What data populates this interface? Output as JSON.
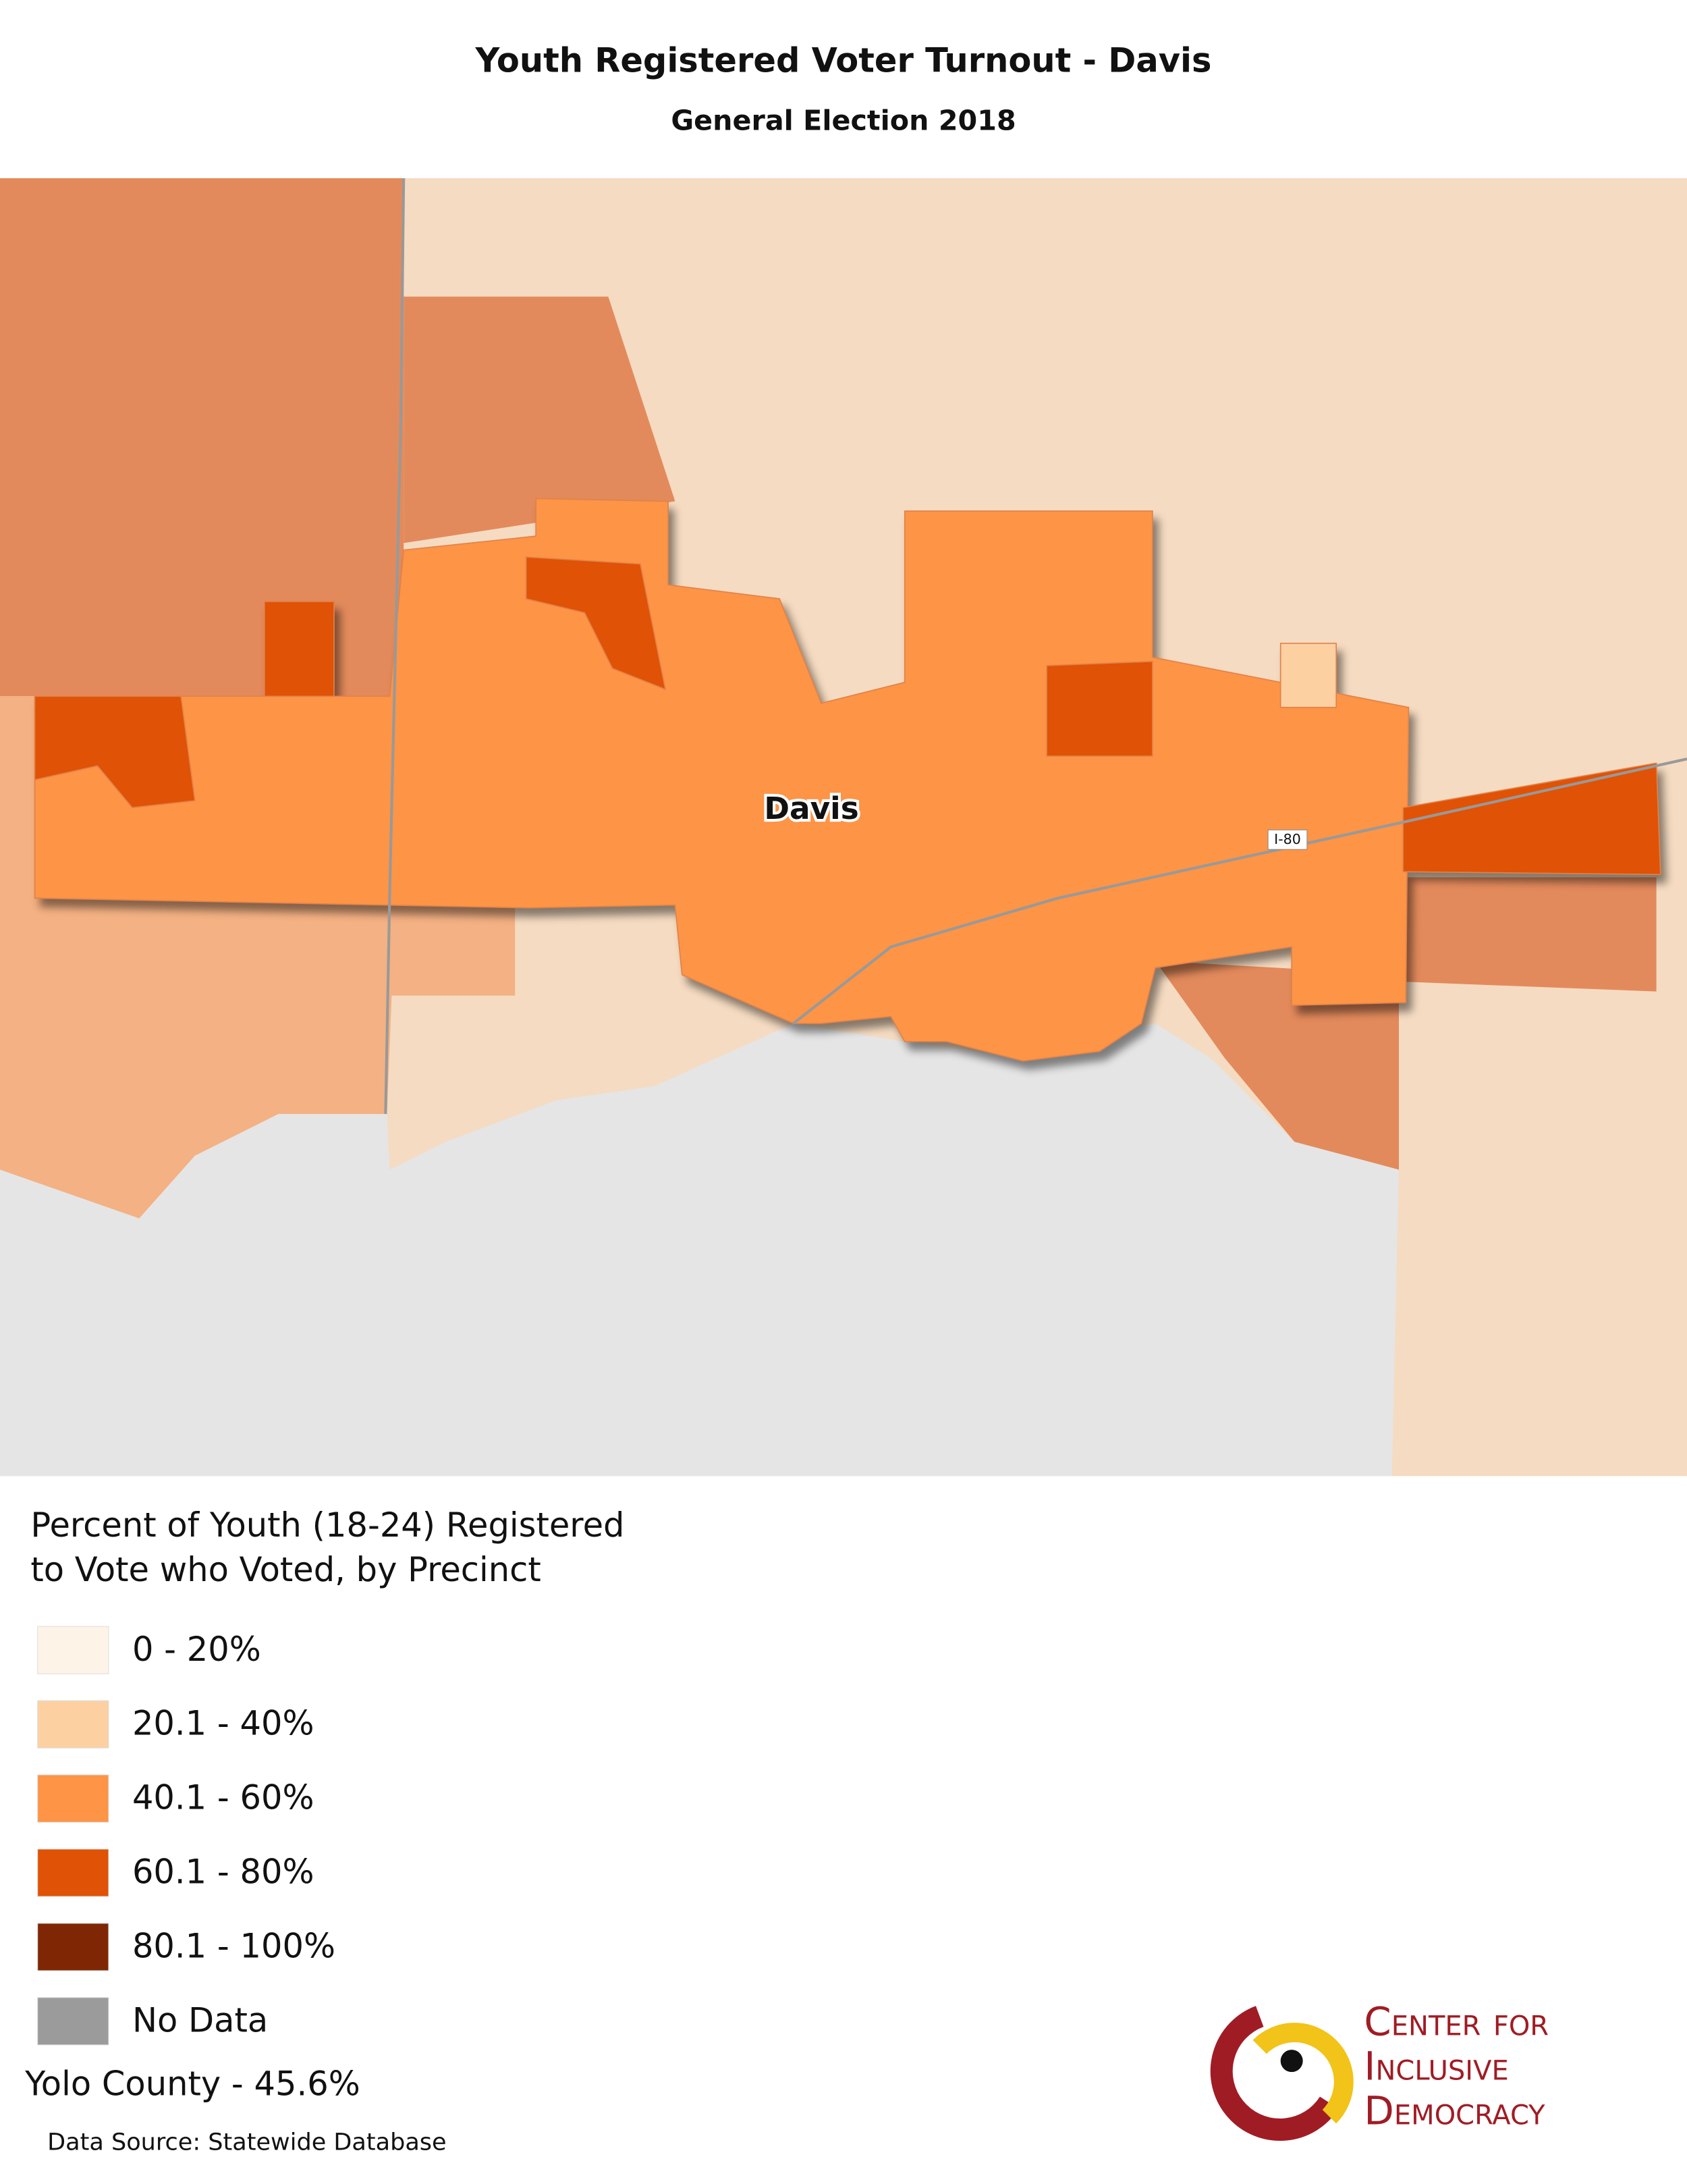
{
  "header": {
    "title": "Youth Registered Voter Turnout - Davis",
    "subtitle": "General Election 2018"
  },
  "map": {
    "labels": {
      "city": "Davis",
      "highway": "I-80"
    }
  },
  "legend": {
    "title_lines": [
      "Percent of Youth (18-24) Registered",
      "to Vote who Voted, by Precinct"
    ],
    "items": [
      {
        "label": "0 - 20%",
        "color": "#fef3e7"
      },
      {
        "label": "20.1 - 40%",
        "color": "#fdd0a2"
      },
      {
        "label": "40.1 - 60%",
        "color": "#fd9446"
      },
      {
        "label": "60.1 - 80%",
        "color": "#e05206"
      },
      {
        "label": "80.1 - 100%",
        "color": "#7f2704"
      },
      {
        "label": "No Data",
        "color": "#9b9b9b"
      }
    ]
  },
  "footer": {
    "county_note": "Yolo County - 45.6%",
    "source": "Data Source: Statewide Database"
  },
  "logo": {
    "lines": [
      "Center for",
      "Inclusive",
      "Democracy"
    ]
  }
}
